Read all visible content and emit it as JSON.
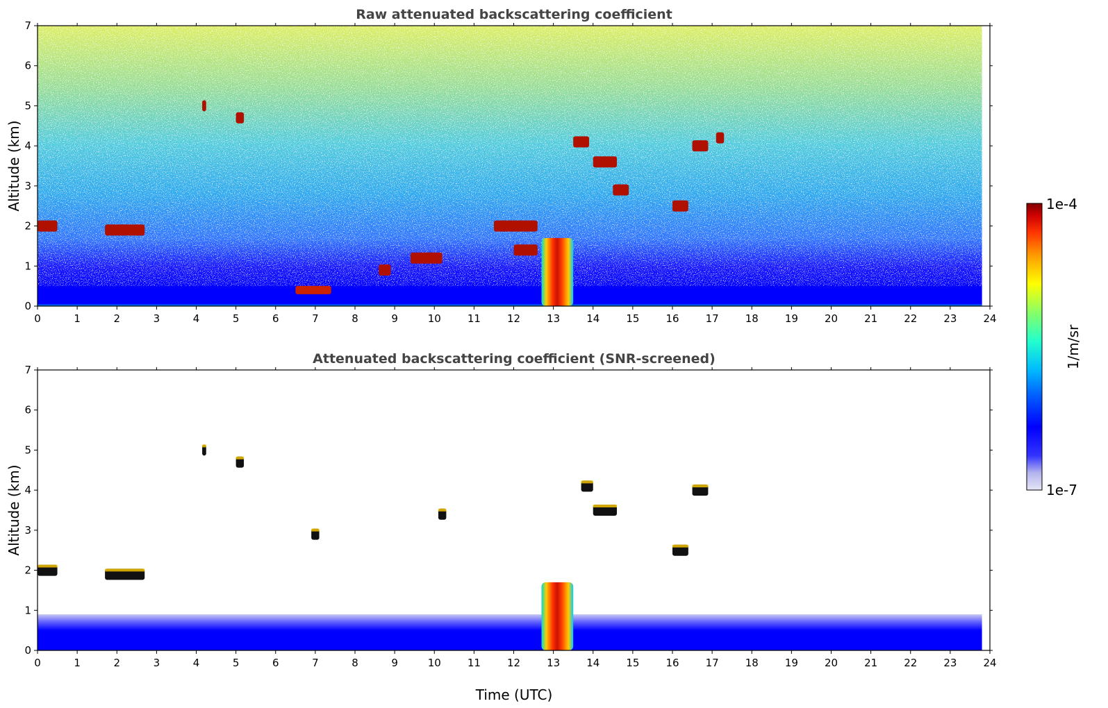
{
  "chart_data": [
    {
      "type": "heatmap",
      "title": "Raw attenuated backscattering coefficient",
      "ylabel": "Altitude (km)",
      "xlabel": "",
      "xlim": [
        0,
        24
      ],
      "ylim": [
        0,
        7
      ],
      "xticks": [
        "0",
        "1",
        "2",
        "3",
        "4",
        "5",
        "6",
        "7",
        "8",
        "9",
        "10",
        "11",
        "12",
        "13",
        "14",
        "15",
        "16",
        "17",
        "18",
        "19",
        "20",
        "21",
        "22",
        "23",
        "24"
      ],
      "yticks": [
        "0",
        "1",
        "2",
        "3",
        "4",
        "5",
        "6",
        "7"
      ],
      "data_end_time": 23.8,
      "colorscale": "log",
      "features": [
        {
          "kind": "boundary_layer",
          "t_start": 0,
          "t_end": 23.8,
          "top_km": 0.5
        },
        {
          "kind": "cloud",
          "t_start": 0.0,
          "t_end": 0.5,
          "alt_km": 2.0
        },
        {
          "kind": "cloud",
          "t_start": 1.7,
          "t_end": 2.7,
          "alt_km": 1.9
        },
        {
          "kind": "cloud",
          "t_start": 4.15,
          "t_end": 4.25,
          "alt_km": 5.0
        },
        {
          "kind": "cloud",
          "t_start": 5.0,
          "t_end": 5.2,
          "alt_km": 4.7
        },
        {
          "kind": "aerosol_layer",
          "t_start": 6.5,
          "t_end": 7.4,
          "alt_km": 0.4
        },
        {
          "kind": "cloud",
          "t_start": 8.6,
          "t_end": 8.9,
          "alt_km": 0.9
        },
        {
          "kind": "cloud",
          "t_start": 9.4,
          "t_end": 10.2,
          "alt_km": 1.2
        },
        {
          "kind": "cloud",
          "t_start": 11.5,
          "t_end": 12.6,
          "alt_km": 2.0
        },
        {
          "kind": "cloud",
          "t_start": 12.0,
          "t_end": 12.6,
          "alt_km": 1.4
        },
        {
          "kind": "precipitation",
          "t_start": 12.7,
          "t_end": 13.5,
          "top_km": 1.7
        },
        {
          "kind": "cloud",
          "t_start": 13.5,
          "t_end": 13.9,
          "alt_km": 4.1
        },
        {
          "kind": "cloud",
          "t_start": 14.0,
          "t_end": 14.6,
          "alt_km": 3.6
        },
        {
          "kind": "cloud",
          "t_start": 14.5,
          "t_end": 14.9,
          "alt_km": 2.9
        },
        {
          "kind": "cloud",
          "t_start": 16.0,
          "t_end": 16.4,
          "alt_km": 2.5
        },
        {
          "kind": "cloud",
          "t_start": 16.5,
          "t_end": 16.9,
          "alt_km": 4.0
        },
        {
          "kind": "cloud",
          "t_start": 17.1,
          "t_end": 17.3,
          "alt_km": 4.2
        }
      ]
    },
    {
      "type": "heatmap",
      "title": "Attenuated backscattering coefficient (SNR-screened)",
      "ylabel": "Altitude (km)",
      "xlabel": "Time (UTC)",
      "xlim": [
        0,
        24
      ],
      "ylim": [
        0,
        7
      ],
      "xticks": [
        "0",
        "1",
        "2",
        "3",
        "4",
        "5",
        "6",
        "7",
        "8",
        "9",
        "10",
        "11",
        "12",
        "13",
        "14",
        "15",
        "16",
        "17",
        "18",
        "19",
        "20",
        "21",
        "22",
        "23",
        "24"
      ],
      "yticks": [
        "0",
        "1",
        "2",
        "3",
        "4",
        "5",
        "6",
        "7"
      ],
      "data_end_time": 23.8,
      "colorscale": "log",
      "features": [
        {
          "kind": "boundary_layer",
          "t_start": 0,
          "t_end": 23.8,
          "top_km": 0.9
        },
        {
          "kind": "cloud",
          "t_start": 0.0,
          "t_end": 0.5,
          "alt_km": 2.0
        },
        {
          "kind": "cloud",
          "t_start": 1.7,
          "t_end": 2.7,
          "alt_km": 1.9
        },
        {
          "kind": "cloud",
          "t_start": 4.15,
          "t_end": 4.25,
          "alt_km": 5.0
        },
        {
          "kind": "cloud",
          "t_start": 5.0,
          "t_end": 5.2,
          "alt_km": 4.7
        },
        {
          "kind": "cloud",
          "t_start": 6.9,
          "t_end": 7.1,
          "alt_km": 2.9
        },
        {
          "kind": "cloud",
          "t_start": 10.1,
          "t_end": 10.3,
          "alt_km": 3.4
        },
        {
          "kind": "precipitation",
          "t_start": 12.7,
          "t_end": 13.5,
          "top_km": 1.7
        },
        {
          "kind": "cloud",
          "t_start": 13.7,
          "t_end": 14.0,
          "alt_km": 4.1
        },
        {
          "kind": "cloud",
          "t_start": 14.0,
          "t_end": 14.6,
          "alt_km": 3.5
        },
        {
          "kind": "cloud",
          "t_start": 16.0,
          "t_end": 16.4,
          "alt_km": 2.5
        },
        {
          "kind": "cloud",
          "t_start": 16.5,
          "t_end": 16.9,
          "alt_km": 4.0
        }
      ]
    }
  ],
  "colorbar": {
    "label": "1/m/sr",
    "max_label": "1e-4",
    "min_label": "1e-7",
    "colors": [
      "#e6e6f5",
      "#b3b3ee",
      "#6666ff",
      "#0000ff",
      "#0066ff",
      "#00ccff",
      "#33ffcc",
      "#99ff66",
      "#ffff00",
      "#ff9900",
      "#ff3300",
      "#cc0000",
      "#800000"
    ]
  }
}
